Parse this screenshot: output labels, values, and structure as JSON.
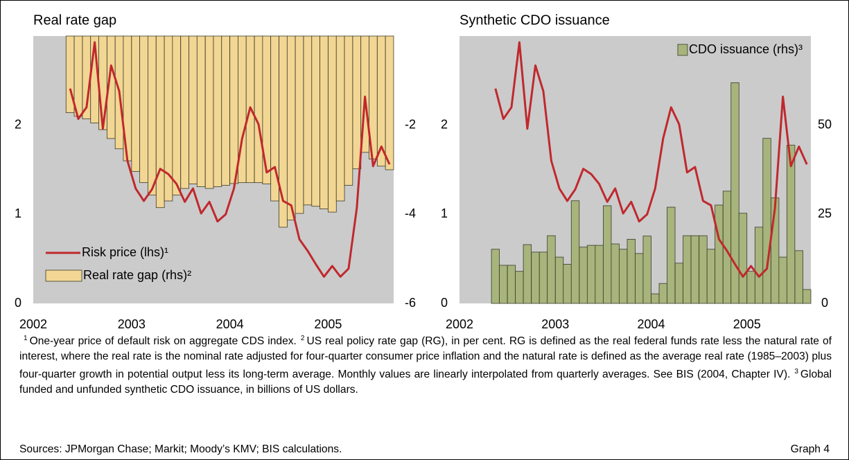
{
  "chart_data": [
    {
      "type": "bar-line",
      "title": "Real rate gap",
      "x": [
        2002.375,
        2002.458,
        2002.542,
        2002.625,
        2002.708,
        2002.792,
        2002.875,
        2002.958,
        2003.042,
        2003.125,
        2003.208,
        2003.292,
        2003.375,
        2003.458,
        2003.542,
        2003.625,
        2003.708,
        2003.792,
        2003.875,
        2003.958,
        2004.042,
        2004.125,
        2004.208,
        2004.292,
        2004.375,
        2004.458,
        2004.542,
        2004.625,
        2004.708,
        2004.792,
        2004.875,
        2004.958,
        2005.042,
        2005.125,
        2005.208,
        2005.292,
        2005.375,
        2005.458,
        2005.542,
        2005.625
      ],
      "xlim": [
        2002,
        2005.667
      ],
      "xticks": [
        2002,
        2003,
        2004,
        2005
      ],
      "ylim": [
        0,
        3
      ],
      "yticks": [
        0,
        1,
        2
      ],
      "y2lim": [
        -6,
        0
      ],
      "y2ticks": [
        -6,
        -4,
        -2
      ],
      "legend": "lower left",
      "series": [
        {
          "name": "Risk price (lhs)¹",
          "kind": "line",
          "color": "#c0282d",
          "values": [
            2.41,
            2.07,
            2.2,
            2.93,
            1.96,
            2.67,
            2.38,
            1.6,
            1.29,
            1.15,
            1.28,
            1.51,
            1.45,
            1.34,
            1.14,
            1.29,
            1.01,
            1.14,
            0.92,
            1.0,
            1.29,
            1.85,
            2.2,
            2.01,
            1.47,
            1.53,
            1.15,
            1.1,
            0.72,
            0.59,
            0.44,
            0.3,
            0.42,
            0.3,
            0.39,
            1.07,
            2.32,
            1.54,
            1.76,
            1.56
          ]
        },
        {
          "name": "Real rate gap (rhs)²",
          "kind": "bar",
          "axis": "y2",
          "color": "#f2d693",
          "values": [
            -1.72,
            -1.8,
            -1.86,
            -1.95,
            -2.1,
            -2.3,
            -2.53,
            -2.8,
            -3.04,
            -3.29,
            -3.57,
            -3.85,
            -3.7,
            -3.57,
            -3.42,
            -3.32,
            -3.38,
            -3.42,
            -3.38,
            -3.35,
            -3.31,
            -3.29,
            -3.29,
            -3.29,
            -3.32,
            -3.7,
            -4.29,
            -4.13,
            -3.98,
            -3.79,
            -3.82,
            -3.88,
            -3.95,
            -3.7,
            -3.35,
            -2.98,
            -2.61,
            -2.76,
            -2.92,
            -3.0
          ]
        }
      ]
    },
    {
      "type": "bar-line",
      "title": "Synthetic CDO issuance",
      "x": [
        2002.375,
        2002.458,
        2002.542,
        2002.625,
        2002.708,
        2002.792,
        2002.875,
        2002.958,
        2003.042,
        2003.125,
        2003.208,
        2003.292,
        2003.375,
        2003.458,
        2003.542,
        2003.625,
        2003.708,
        2003.792,
        2003.875,
        2003.958,
        2004.042,
        2004.125,
        2004.208,
        2004.292,
        2004.375,
        2004.458,
        2004.542,
        2004.625,
        2004.708,
        2004.792,
        2004.875,
        2004.958,
        2005.042,
        2005.125,
        2005.208,
        2005.292,
        2005.375,
        2005.458,
        2005.542,
        2005.625
      ],
      "xlim": [
        2002,
        2005.667
      ],
      "xticks": [
        2002,
        2003,
        2004,
        2005
      ],
      "ylim": [
        0,
        3
      ],
      "yticks": [
        0,
        1,
        2
      ],
      "y2lim": [
        0,
        75
      ],
      "y2ticks": [
        0,
        25,
        50
      ],
      "legend": "upper right",
      "series": [
        {
          "name": "CDO issuance (rhs)³",
          "kind": "bar",
          "axis": "y2",
          "color": "#a7b47c",
          "values": [
            15.2,
            10.7,
            10.7,
            9,
            16.5,
            14.4,
            14.4,
            19,
            13,
            11,
            28.8,
            15.8,
            16.3,
            16.3,
            27.4,
            16.7,
            15.2,
            18,
            14,
            18.9,
            2.7,
            5.6,
            27,
            11.3,
            19,
            19,
            19,
            15.2,
            27.6,
            31.5,
            61.9,
            25.3,
            9,
            21.4,
            46.3,
            29.6,
            13,
            44.4,
            14.8,
            3.9
          ]
        },
        {
          "kind": "line",
          "color": "#c0282d",
          "values": [
            2.41,
            2.07,
            2.2,
            2.93,
            1.96,
            2.67,
            2.38,
            1.6,
            1.29,
            1.15,
            1.28,
            1.51,
            1.45,
            1.34,
            1.14,
            1.29,
            1.01,
            1.14,
            0.92,
            1.0,
            1.29,
            1.85,
            2.2,
            2.01,
            1.47,
            1.53,
            1.15,
            1.1,
            0.72,
            0.59,
            0.44,
            0.3,
            0.42,
            0.3,
            0.39,
            1.07,
            2.32,
            1.54,
            1.76,
            1.56
          ]
        }
      ]
    }
  ],
  "notes": [
    {
      "mark": "1",
      "text": "One-year price of default risk on aggregate CDS index."
    },
    {
      "mark": "2",
      "text": "US real policy rate gap (RG), in per cent. RG is defined as the real federal funds rate less the natural rate of interest, where the real rate is the nominal rate adjusted for four-quarter consumer price inflation and the natural rate is defined as the average real rate (1985–2003) plus four-quarter growth in potential output less its long-term average. Monthly values are linearly interpolated from quarterly averages. See BIS (2004, Chapter IV)."
    },
    {
      "mark": "3",
      "text": "Global funded and unfunded synthetic CDO issuance, in billions of US dollars."
    }
  ],
  "sources": "Sources: JPMorgan Chase; Markit; Moody’s KMV; BIS calculations.",
  "graph_label": "Graph 4"
}
